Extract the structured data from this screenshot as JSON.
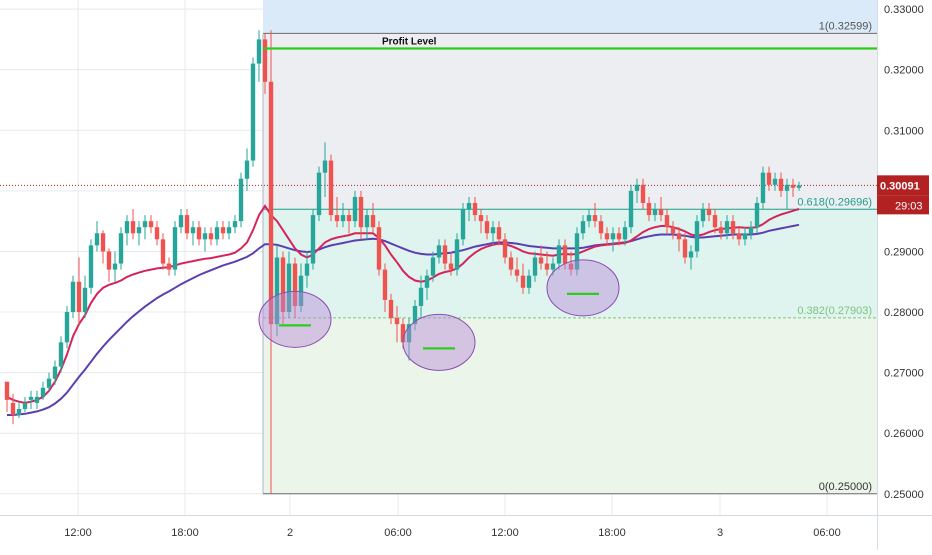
{
  "chart_data": {
    "type": "candlestick",
    "title": "",
    "xlabel": "",
    "ylabel": "",
    "ylim": [
      0.2465,
      0.3315
    ],
    "x_ticks": [
      "12:00",
      "18:00",
      "2",
      "06:00",
      "12:00",
      "18:00",
      "3",
      "06:00"
    ],
    "y_ticks": [
      "0.33000",
      "0.32000",
      "0.31000",
      "0.30000",
      "0.29000",
      "0.28000",
      "0.27000",
      "0.26000",
      "0.25000"
    ],
    "y_tick_values": [
      0.33,
      0.32,
      0.31,
      0.3,
      0.29,
      0.28,
      0.27,
      0.26,
      0.25
    ],
    "current_price": {
      "value": 0.30091,
      "label": "0.30091",
      "countdown": "29:03"
    },
    "colors": {
      "up": "#26a69a",
      "down": "#ef5350",
      "ma_fast": "#d6245a",
      "ma_slow": "#5b3fb0",
      "profit": "#2ecc1f",
      "price_line": "#b22222",
      "fib_line": "#1f9e8a",
      "fib_382": "#7cc47c"
    },
    "fibonacci": {
      "levels": [
        {
          "value": 0.32599,
          "label": "1(0.32599)"
        },
        {
          "value": 0.29696,
          "label": "0.618(0.29696)"
        },
        {
          "value": 0.27903,
          "label": "0.382(0.27903)"
        },
        {
          "value": 0.25,
          "label": "0(0.25000)"
        }
      ]
    },
    "annotations": {
      "profit_level": {
        "value": 0.3235,
        "label": "Profit Level"
      },
      "support_marks": [
        {
          "bar": 48,
          "price": 0.2778
        },
        {
          "bar": 72,
          "price": 0.274
        },
        {
          "bar": 96,
          "price": 0.283
        }
      ]
    },
    "candles": [
      [
        0.2685,
        0.2685,
        0.2635,
        0.2655
      ],
      [
        0.265,
        0.2665,
        0.2615,
        0.263
      ],
      [
        0.263,
        0.265,
        0.2625,
        0.264
      ],
      [
        0.264,
        0.266,
        0.2635,
        0.265
      ],
      [
        0.2655,
        0.267,
        0.264,
        0.266
      ],
      [
        0.265,
        0.267,
        0.264,
        0.266
      ],
      [
        0.266,
        0.2685,
        0.2655,
        0.2675
      ],
      [
        0.2675,
        0.27,
        0.267,
        0.269
      ],
      [
        0.269,
        0.272,
        0.268,
        0.271
      ],
      [
        0.271,
        0.276,
        0.27,
        0.275
      ],
      [
        0.275,
        0.281,
        0.274,
        0.28
      ],
      [
        0.28,
        0.286,
        0.279,
        0.285
      ],
      [
        0.285,
        0.289,
        0.278,
        0.28
      ],
      [
        0.28,
        0.286,
        0.279,
        0.284
      ],
      [
        0.284,
        0.292,
        0.283,
        0.291
      ],
      [
        0.291,
        0.295,
        0.29,
        0.293
      ],
      [
        0.293,
        0.2935,
        0.288,
        0.29
      ],
      [
        0.29,
        0.2905,
        0.285,
        0.287
      ],
      [
        0.287,
        0.29,
        0.285,
        0.288
      ],
      [
        0.288,
        0.294,
        0.287,
        0.293
      ],
      [
        0.293,
        0.296,
        0.291,
        0.295
      ],
      [
        0.295,
        0.297,
        0.292,
        0.293
      ],
      [
        0.293,
        0.295,
        0.291,
        0.294
      ],
      [
        0.294,
        0.296,
        0.292,
        0.295
      ],
      [
        0.295,
        0.296,
        0.293,
        0.294
      ],
      [
        0.294,
        0.295,
        0.291,
        0.292
      ],
      [
        0.292,
        0.293,
        0.287,
        0.288
      ],
      [
        0.288,
        0.289,
        0.286,
        0.287
      ],
      [
        0.287,
        0.295,
        0.286,
        0.294
      ],
      [
        0.294,
        0.297,
        0.293,
        0.296
      ],
      [
        0.296,
        0.297,
        0.292,
        0.293
      ],
      [
        0.293,
        0.295,
        0.291,
        0.294
      ],
      [
        0.294,
        0.295,
        0.291,
        0.292
      ],
      [
        0.292,
        0.294,
        0.29,
        0.293
      ],
      [
        0.293,
        0.294,
        0.291,
        0.292
      ],
      [
        0.292,
        0.295,
        0.291,
        0.294
      ],
      [
        0.294,
        0.295,
        0.292,
        0.293
      ],
      [
        0.293,
        0.295,
        0.292,
        0.294
      ],
      [
        0.294,
        0.296,
        0.293,
        0.295
      ],
      [
        0.295,
        0.303,
        0.294,
        0.302
      ],
      [
        0.302,
        0.307,
        0.3,
        0.305
      ],
      [
        0.305,
        0.322,
        0.304,
        0.321
      ],
      [
        0.321,
        0.3265,
        0.318,
        0.325
      ],
      [
        0.325,
        0.326,
        0.316,
        0.318
      ],
      [
        0.318,
        0.3265,
        0.25,
        0.278
      ],
      [
        0.278,
        0.291,
        0.276,
        0.289
      ],
      [
        0.289,
        0.29,
        0.278,
        0.28
      ],
      [
        0.28,
        0.29,
        0.279,
        0.288
      ],
      [
        0.288,
        0.289,
        0.279,
        0.281
      ],
      [
        0.281,
        0.288,
        0.28,
        0.286
      ],
      [
        0.286,
        0.29,
        0.284,
        0.288
      ],
      [
        0.288,
        0.297,
        0.287,
        0.296
      ],
      [
        0.296,
        0.304,
        0.295,
        0.303
      ],
      [
        0.303,
        0.308,
        0.299,
        0.305
      ],
      [
        0.305,
        0.306,
        0.295,
        0.296
      ],
      [
        0.296,
        0.299,
        0.294,
        0.295
      ],
      [
        0.295,
        0.298,
        0.294,
        0.296
      ],
      [
        0.296,
        0.297,
        0.293,
        0.295
      ],
      [
        0.295,
        0.3,
        0.294,
        0.299
      ],
      [
        0.299,
        0.3,
        0.292,
        0.294
      ],
      [
        0.294,
        0.297,
        0.292,
        0.296
      ],
      [
        0.296,
        0.298,
        0.293,
        0.294
      ],
      [
        0.294,
        0.295,
        0.286,
        0.287
      ],
      [
        0.287,
        0.288,
        0.28,
        0.282
      ],
      [
        0.282,
        0.283,
        0.278,
        0.279
      ],
      [
        0.279,
        0.281,
        0.275,
        0.278
      ],
      [
        0.278,
        0.279,
        0.274,
        0.275
      ],
      [
        0.275,
        0.279,
        0.272,
        0.278
      ],
      [
        0.278,
        0.282,
        0.277,
        0.281
      ],
      [
        0.281,
        0.286,
        0.279,
        0.284
      ],
      [
        0.284,
        0.287,
        0.282,
        0.286
      ],
      [
        0.286,
        0.29,
        0.285,
        0.289
      ],
      [
        0.289,
        0.292,
        0.288,
        0.291
      ],
      [
        0.291,
        0.292,
        0.287,
        0.288
      ],
      [
        0.288,
        0.29,
        0.286,
        0.287
      ],
      [
        0.287,
        0.293,
        0.286,
        0.292
      ],
      [
        0.292,
        0.298,
        0.291,
        0.297
      ],
      [
        0.297,
        0.299,
        0.295,
        0.298
      ],
      [
        0.298,
        0.299,
        0.295,
        0.296
      ],
      [
        0.296,
        0.297,
        0.293,
        0.295
      ],
      [
        0.295,
        0.296,
        0.292,
        0.293
      ],
      [
        0.293,
        0.295,
        0.291,
        0.294
      ],
      [
        0.294,
        0.295,
        0.291,
        0.292
      ],
      [
        0.292,
        0.293,
        0.288,
        0.289
      ],
      [
        0.289,
        0.29,
        0.286,
        0.287
      ],
      [
        0.287,
        0.289,
        0.285,
        0.286
      ],
      [
        0.286,
        0.288,
        0.283,
        0.284
      ],
      [
        0.284,
        0.287,
        0.283,
        0.286
      ],
      [
        0.286,
        0.29,
        0.285,
        0.289
      ],
      [
        0.289,
        0.291,
        0.287,
        0.288
      ],
      [
        0.288,
        0.29,
        0.286,
        0.287
      ],
      [
        0.287,
        0.289,
        0.286,
        0.288
      ],
      [
        0.288,
        0.292,
        0.287,
        0.291
      ],
      [
        0.291,
        0.292,
        0.287,
        0.288
      ],
      [
        0.288,
        0.29,
        0.286,
        0.287
      ],
      [
        0.287,
        0.294,
        0.286,
        0.293
      ],
      [
        0.293,
        0.296,
        0.292,
        0.295
      ],
      [
        0.295,
        0.297,
        0.294,
        0.296
      ],
      [
        0.296,
        0.298,
        0.294,
        0.295
      ],
      [
        0.295,
        0.296,
        0.292,
        0.293
      ],
      [
        0.293,
        0.294,
        0.291,
        0.292
      ],
      [
        0.292,
        0.294,
        0.29,
        0.293
      ],
      [
        0.293,
        0.294,
        0.291,
        0.292
      ],
      [
        0.292,
        0.295,
        0.291,
        0.294
      ],
      [
        0.294,
        0.301,
        0.293,
        0.3
      ],
      [
        0.3,
        0.302,
        0.298,
        0.301
      ],
      [
        0.301,
        0.302,
        0.297,
        0.298
      ],
      [
        0.298,
        0.299,
        0.295,
        0.296
      ],
      [
        0.296,
        0.298,
        0.295,
        0.297
      ],
      [
        0.297,
        0.299,
        0.295,
        0.296
      ],
      [
        0.296,
        0.297,
        0.293,
        0.294
      ],
      [
        0.294,
        0.295,
        0.292,
        0.293
      ],
      [
        0.293,
        0.294,
        0.29,
        0.292
      ],
      [
        0.292,
        0.293,
        0.288,
        0.289
      ],
      [
        0.289,
        0.291,
        0.287,
        0.29
      ],
      [
        0.29,
        0.296,
        0.289,
        0.295
      ],
      [
        0.295,
        0.298,
        0.294,
        0.297
      ],
      [
        0.297,
        0.298,
        0.295,
        0.296
      ],
      [
        0.296,
        0.297,
        0.293,
        0.294
      ],
      [
        0.294,
        0.295,
        0.292,
        0.293
      ],
      [
        0.293,
        0.296,
        0.292,
        0.295
      ],
      [
        0.295,
        0.296,
        0.292,
        0.293
      ],
      [
        0.293,
        0.294,
        0.291,
        0.292
      ],
      [
        0.292,
        0.294,
        0.291,
        0.293
      ],
      [
        0.293,
        0.295,
        0.292,
        0.294
      ],
      [
        0.294,
        0.299,
        0.293,
        0.298
      ],
      [
        0.298,
        0.304,
        0.297,
        0.303
      ],
      [
        0.303,
        0.304,
        0.3,
        0.301
      ],
      [
        0.301,
        0.303,
        0.3,
        0.302
      ],
      [
        0.302,
        0.303,
        0.299,
        0.3
      ],
      [
        0.3,
        0.302,
        0.297,
        0.301
      ],
      [
        0.301,
        0.302,
        0.299,
        0.3005
      ],
      [
        0.3005,
        0.3015,
        0.3,
        0.3009
      ]
    ],
    "ma_fast": [
      0.266,
      0.2655,
      0.2652,
      0.265,
      0.2652,
      0.2655,
      0.266,
      0.267,
      0.2685,
      0.2705,
      0.273,
      0.276,
      0.278,
      0.2795,
      0.2815,
      0.283,
      0.284,
      0.2845,
      0.2848,
      0.2852,
      0.2858,
      0.2862,
      0.2865,
      0.2868,
      0.287,
      0.2872,
      0.2873,
      0.2874,
      0.2877,
      0.288,
      0.2882,
      0.2884,
      0.2886,
      0.2888,
      0.2889,
      0.2891,
      0.2893,
      0.2895,
      0.2898,
      0.2905,
      0.2915,
      0.2935,
      0.296,
      0.2975,
      0.296,
      0.295,
      0.2935,
      0.292,
      0.2905,
      0.2895,
      0.289,
      0.2895,
      0.2905,
      0.2915,
      0.292,
      0.2923,
      0.2925,
      0.2927,
      0.293,
      0.293,
      0.293,
      0.293,
      0.2922,
      0.291,
      0.2895,
      0.2882,
      0.2868,
      0.2858,
      0.2852,
      0.285,
      0.2852,
      0.2857,
      0.2863,
      0.2866,
      0.2868,
      0.2872,
      0.288,
      0.289,
      0.2898,
      0.2904,
      0.2908,
      0.2911,
      0.2913,
      0.2912,
      0.2909,
      0.2905,
      0.29,
      0.2897,
      0.2896,
      0.2895,
      0.2894,
      0.2893,
      0.2895,
      0.2896,
      0.2895,
      0.2896,
      0.29,
      0.2904,
      0.2908,
      0.291,
      0.2911,
      0.2912,
      0.2913,
      0.2914,
      0.2918,
      0.2925,
      0.2932,
      0.2937,
      0.294,
      0.2942,
      0.2942,
      0.294,
      0.2937,
      0.2933,
      0.2928,
      0.2926,
      0.2928,
      0.2932,
      0.2935,
      0.2937,
      0.2938,
      0.2939,
      0.294,
      0.2939,
      0.2939,
      0.294,
      0.2945,
      0.2952,
      0.2957,
      0.2961,
      0.2964,
      0.2967,
      0.297
    ],
    "ma_slow": [
      0.263,
      0.263,
      0.2631,
      0.2632,
      0.2634,
      0.2636,
      0.2639,
      0.2643,
      0.2649,
      0.2657,
      0.2667,
      0.268,
      0.2693,
      0.2705,
      0.2718,
      0.2731,
      0.2743,
      0.2754,
      0.2764,
      0.2774,
      0.2784,
      0.2793,
      0.2801,
      0.2809,
      0.2816,
      0.2823,
      0.2829,
      0.2834,
      0.284,
      0.2846,
      0.2851,
      0.2856,
      0.2861,
      0.2865,
      0.2869,
      0.2873,
      0.2877,
      0.288,
      0.2883,
      0.2887,
      0.2891,
      0.2897,
      0.2905,
      0.2912,
      0.2912,
      0.2911,
      0.2908,
      0.2905,
      0.2902,
      0.29,
      0.2899,
      0.29,
      0.2903,
      0.2907,
      0.291,
      0.2912,
      0.2914,
      0.2916,
      0.2918,
      0.2919,
      0.292,
      0.2921,
      0.292,
      0.2917,
      0.2913,
      0.2909,
      0.2905,
      0.2901,
      0.2898,
      0.2896,
      0.2895,
      0.2895,
      0.2896,
      0.2897,
      0.2898,
      0.29,
      0.2902,
      0.2905,
      0.2908,
      0.291,
      0.2912,
      0.2914,
      0.2915,
      0.2915,
      0.2914,
      0.2913,
      0.2911,
      0.2909,
      0.2908,
      0.2907,
      0.2906,
      0.2905,
      0.2905,
      0.2905,
      0.2905,
      0.2905,
      0.2906,
      0.2908,
      0.291,
      0.2911,
      0.2912,
      0.2913,
      0.2914,
      0.2915,
      0.2917,
      0.292,
      0.2923,
      0.2925,
      0.2927,
      0.2928,
      0.2928,
      0.2928,
      0.2927,
      0.2926,
      0.2924,
      0.2923,
      0.2923,
      0.2924,
      0.2925,
      0.2926,
      0.2927,
      0.2928,
      0.2928,
      0.2928,
      0.2928,
      0.2929,
      0.2931,
      0.2934,
      0.2936,
      0.2938,
      0.294,
      0.2942,
      0.2944
    ]
  }
}
